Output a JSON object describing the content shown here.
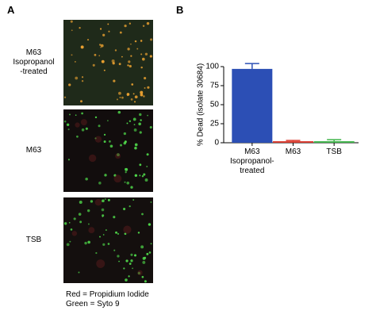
{
  "panel_a": {
    "label": "A",
    "images": [
      {
        "label": "M63\nIsopropanol\n-treated"
      },
      {
        "label": "M63"
      },
      {
        "label": "TSB"
      }
    ],
    "legend": [
      "Red = Propidium Iodide",
      "Green = Syto 9"
    ]
  },
  "panel_b": {
    "label": "B"
  },
  "chart_data": {
    "type": "bar",
    "y_label": "% Dead (isolate 30684)",
    "categories": [
      "M63\nIsopropanol-\ntreated",
      "M63",
      "TSB"
    ],
    "values": [
      97,
      2,
      2
    ],
    "errors": [
      7,
      1,
      2
    ],
    "colors": [
      "#2c4fb5",
      "#d93a2e",
      "#3fb54a"
    ],
    "ylim": [
      0,
      100
    ],
    "yticks": [
      0,
      25,
      50,
      75,
      100
    ],
    "grid": false
  }
}
